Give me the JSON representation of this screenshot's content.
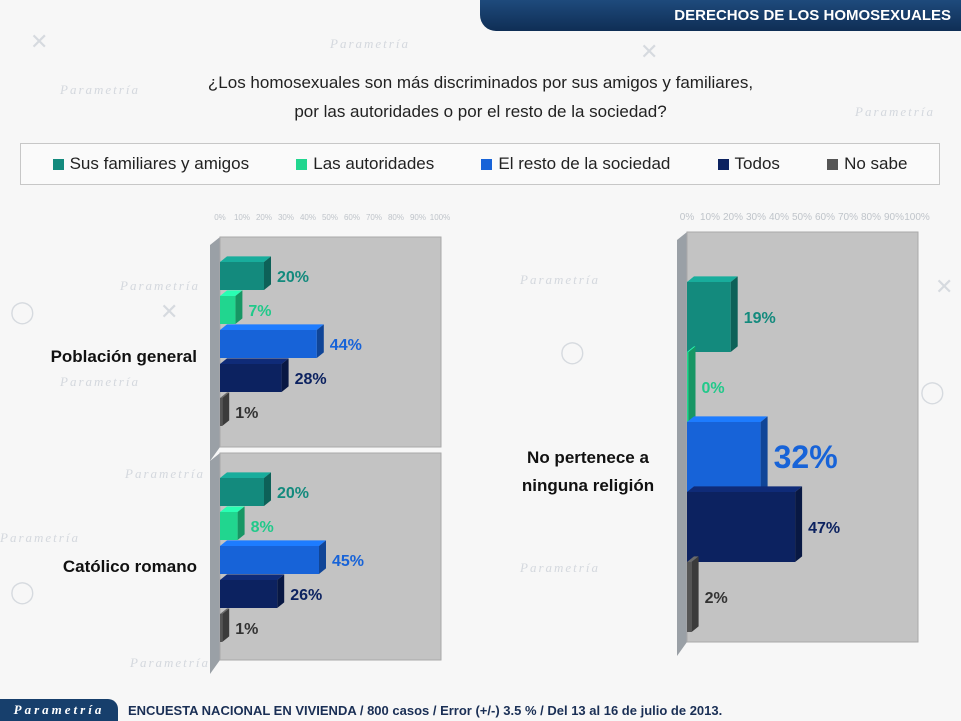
{
  "header": {
    "title": "DERECHOS DE LOS HOMOSEXUALES"
  },
  "question": {
    "line1": "¿Los homosexuales son más discriminados por sus amigos y familiares,",
    "line2": "por las autoridades o por el resto de la sociedad?"
  },
  "legend": [
    {
      "label": "Sus familiares y amigos",
      "color": "#138a7d"
    },
    {
      "label": "Las autoridades",
      "color": "#21d68f"
    },
    {
      "label": "El resto de la sociedad",
      "color": "#1763d8"
    },
    {
      "label": "Todos",
      "color": "#0c2260"
    },
    {
      "label": "No sabe",
      "color": "#555555"
    }
  ],
  "brand": {
    "watermark": "Parametría"
  },
  "footer": {
    "logo": "Parametría",
    "note": "ENCUESTA NACIONAL EN VIVIENDA / 800 casos / Error (+/-) 3.5 % / Del 13 al 16 de julio de 2013."
  },
  "chart_data": [
    {
      "type": "bar",
      "orientation": "horizontal",
      "xlim": [
        0,
        100
      ],
      "tick_labels": [
        "0%",
        "10%",
        "20%",
        "30%",
        "40%",
        "50%",
        "60%",
        "70%",
        "80%",
        "90%",
        "100%"
      ],
      "series_names": [
        "Sus familiares y amigos",
        "Las autoridades",
        "El resto de la sociedad",
        "Todos",
        "No sabe"
      ],
      "groups": [
        {
          "name": "Población general",
          "values": [
            20,
            7,
            44,
            28,
            1
          ],
          "labels": [
            "20%",
            "7%",
            "44%",
            "28%",
            "1%"
          ]
        },
        {
          "name": "Católico romano",
          "values": [
            20,
            8,
            45,
            26,
            1
          ],
          "labels": [
            "20%",
            "8%",
            "45%",
            "26%",
            "1%"
          ]
        }
      ]
    },
    {
      "type": "bar",
      "orientation": "horizontal",
      "xlim": [
        0,
        100
      ],
      "tick_labels": [
        "0%",
        "10%",
        "20%",
        "30%",
        "40%",
        "50%",
        "60%",
        "70%",
        "80%",
        "90%",
        "100%"
      ],
      "series_names": [
        "Sus familiares y amigos",
        "Las autoridades",
        "El resto de la sociedad",
        "Todos",
        "No sabe"
      ],
      "groups": [
        {
          "name_line1": "No pertenece a",
          "name_line2": "ninguna religión",
          "values": [
            19,
            0,
            32,
            47,
            2
          ],
          "labels": [
            "19%",
            "0%",
            "32%",
            "47%",
            "2%"
          ]
        }
      ]
    }
  ]
}
